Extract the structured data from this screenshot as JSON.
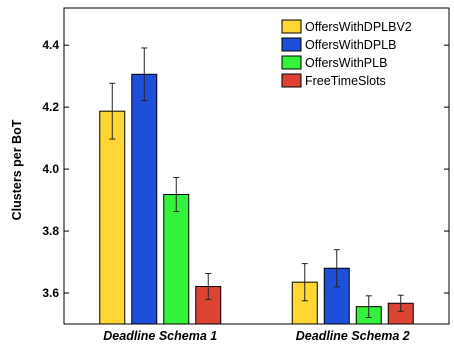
{
  "chart_data": {
    "type": "bar",
    "title": "",
    "xlabel": "",
    "ylabel": "Clusters per BoT",
    "categories": [
      "Deadline Schema 1",
      "Deadline Schema 2"
    ],
    "ylim": [
      3.5,
      4.52
    ],
    "yticks": [
      "3.6",
      "3.8",
      "4.0",
      "4.2",
      "4.4"
    ],
    "grid": false,
    "legend_position": "top-right",
    "series": [
      {
        "name": "OffersWithDPLBV2",
        "color": "#FFD633",
        "values": [
          4.187,
          3.635
        ],
        "error": [
          0.09,
          0.06
        ]
      },
      {
        "name": "OffersWithDPLB",
        "color": "#1E4FD8",
        "values": [
          4.306,
          3.68
        ],
        "error": [
          0.085,
          0.06
        ]
      },
      {
        "name": "OffersWithPLB",
        "color": "#33F23A",
        "values": [
          3.918,
          3.556
        ],
        "error": [
          0.055,
          0.035
        ]
      },
      {
        "name": "FreeTimeSlots",
        "color": "#DB4332",
        "values": [
          3.621,
          3.567
        ],
        "error": [
          0.042,
          0.026
        ]
      }
    ]
  }
}
